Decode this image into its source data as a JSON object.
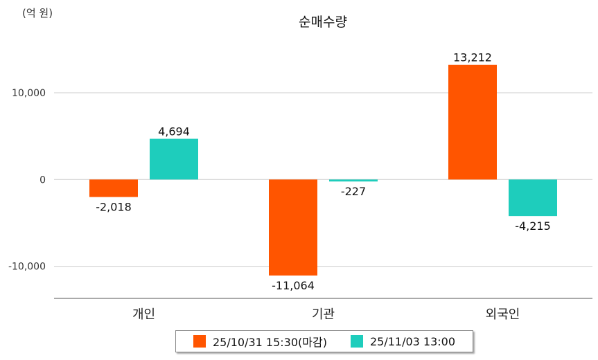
{
  "chart_data": {
    "type": "bar",
    "title": "순매수량",
    "unit_label": "(억 원)",
    "categories": [
      "개인",
      "기관",
      "외국인"
    ],
    "series": [
      {
        "name": "25/10/31 15:30(마감)",
        "color": "#ff5500",
        "values": [
          -2018,
          -11064,
          13212
        ]
      },
      {
        "name": "25/11/03 13:00",
        "color": "#1ecdbc",
        "values": [
          4694,
          -227,
          -4215
        ]
      }
    ],
    "value_labels": [
      [
        "-2,018",
        "-11,064",
        "13,212"
      ],
      [
        "4,694",
        "-227",
        "-4,215"
      ]
    ],
    "y_ticks": [
      10000,
      0,
      -10000
    ],
    "y_tick_labels": [
      "10,000",
      "0",
      "-10,000"
    ],
    "ylim": [
      -13700,
      17500
    ],
    "grid": true,
    "legend_position": "bottom"
  }
}
